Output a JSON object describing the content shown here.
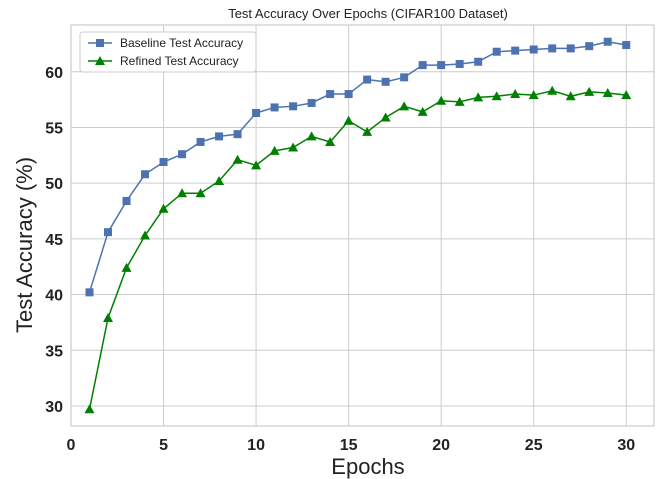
{
  "chart_data": {
    "type": "line",
    "title": "Test Accuracy Over Epochs (CIFAR100 Dataset)",
    "xlabel": "Epochs",
    "ylabel": "Test Accuracy (%)",
    "xlim": [
      0,
      31.5
    ],
    "ylim": [
      28.2,
      64.2
    ],
    "xticks": [
      0,
      5,
      10,
      15,
      20,
      25,
      30
    ],
    "yticks": [
      30,
      35,
      40,
      45,
      50,
      55,
      60
    ],
    "grid": true,
    "legend_position": "top-left",
    "x": [
      1,
      2,
      3,
      4,
      5,
      6,
      7,
      8,
      9,
      10,
      11,
      12,
      13,
      14,
      15,
      16,
      17,
      18,
      19,
      20,
      21,
      22,
      23,
      24,
      25,
      26,
      27,
      28,
      29,
      30
    ],
    "series": [
      {
        "name": "Baseline Test Accuracy",
        "color": "#4c72b0",
        "marker": "square",
        "values": [
          40.2,
          45.6,
          48.4,
          50.8,
          51.9,
          52.6,
          53.7,
          54.2,
          54.4,
          56.3,
          56.8,
          56.9,
          57.2,
          58.0,
          58.0,
          59.3,
          59.1,
          59.5,
          60.6,
          60.6,
          60.7,
          60.9,
          61.8,
          61.9,
          62.0,
          62.1,
          62.1,
          62.3,
          62.7,
          62.4
        ]
      },
      {
        "name": "Refined Test Accuracy",
        "color": "#008000",
        "marker": "triangle",
        "values": [
          29.7,
          37.9,
          42.4,
          45.3,
          47.7,
          49.1,
          49.1,
          50.2,
          52.1,
          51.6,
          52.9,
          53.2,
          54.2,
          53.7,
          55.6,
          54.6,
          55.9,
          56.9,
          56.4,
          57.4,
          57.3,
          57.7,
          57.8,
          58.0,
          57.9,
          58.3,
          57.8,
          58.2,
          58.1,
          57.9
        ]
      }
    ]
  }
}
